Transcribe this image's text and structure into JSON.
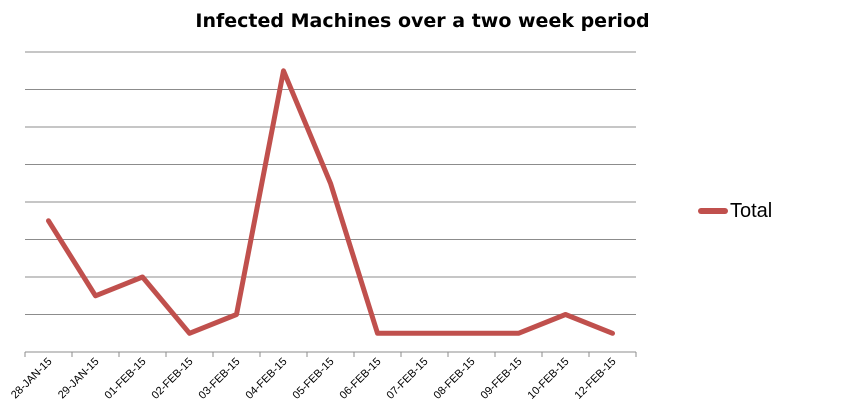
{
  "chart_data": {
    "type": "line",
    "title": "Infected Machines over a two week period",
    "categories": [
      "28-JAN-15",
      "29-JAN-15",
      "01-FEB-15",
      "02-FEB-15",
      "03-FEB-15",
      "04-FEB-15",
      "05-FEB-15",
      "06-FEB-15",
      "07-FEB-15",
      "08-FEB-15",
      "09-FEB-15",
      "10-FEB-15",
      "12-FEB-15"
    ],
    "series": [
      {
        "name": "Total",
        "values": [
          7,
          3,
          4,
          1,
          2,
          15,
          9,
          1,
          1,
          1,
          1,
          2,
          1
        ],
        "color": "#c0504d"
      }
    ],
    "ylim": [
      0,
      16
    ],
    "gridlines": 8,
    "grid": true,
    "y_tick_labels_visible": false,
    "legend": {
      "position": "right"
    }
  }
}
